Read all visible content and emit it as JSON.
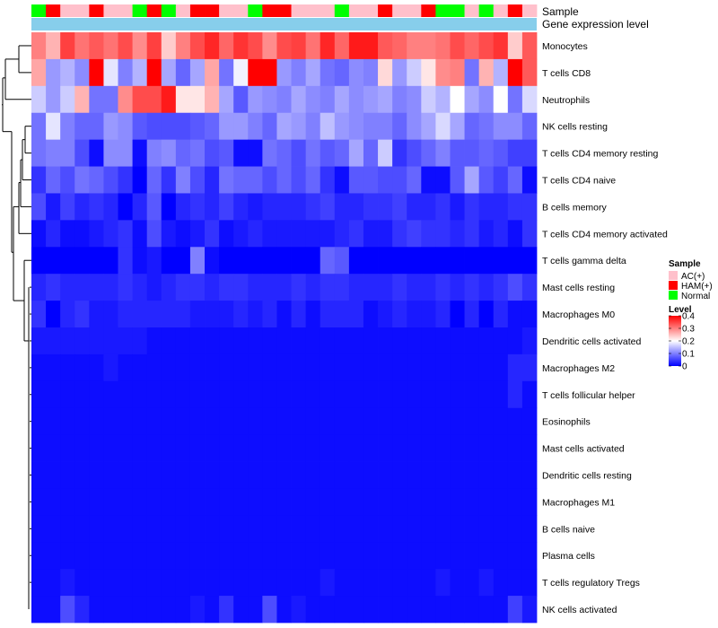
{
  "chart_data": {
    "type": "heatmap",
    "title": "",
    "annotation_labels": [
      "Sample",
      "Gene expression level"
    ],
    "rows": [
      "Monocytes",
      "T cells CD8",
      "Neutrophils",
      "NK cells resting",
      "T cells CD4 memory resting",
      "T cells CD4 naive",
      "B cells memory",
      "T cells CD4 memory activated",
      "T cells gamma delta",
      "Mast cells resting",
      "Macrophages M0",
      "Dendritic cells activated",
      "Macrophages M2",
      "T cells follicular helper",
      "Eosinophils",
      "Mast cells activated",
      "Dendritic cells resting",
      "Macrophages M1",
      "B cells naive",
      "Plasma cells",
      "T cells regulatory  Tregs",
      "NK cells activated"
    ],
    "samples": [
      "Normal",
      "HAM(+)",
      "AC(+)",
      "AC(+)",
      "HAM(+)",
      "AC(+)",
      "AC(+)",
      "Normal",
      "HAM(+)",
      "Normal",
      "AC(+)",
      "HAM(+)",
      "HAM(+)",
      "AC(+)",
      "AC(+)",
      "Normal",
      "HAM(+)",
      "HAM(+)",
      "AC(+)",
      "AC(+)",
      "AC(+)",
      "Normal",
      "AC(+)",
      "AC(+)",
      "HAM(+)",
      "AC(+)",
      "AC(+)",
      "HAM(+)",
      "Normal",
      "Normal",
      "AC(+)",
      "Normal",
      "AC(+)",
      "HAM(+)",
      "AC(+)"
    ],
    "values": [
      [
        0.3,
        0.26,
        0.35,
        0.31,
        0.33,
        0.31,
        0.34,
        0.29,
        0.35,
        0.24,
        0.3,
        0.34,
        0.37,
        0.32,
        0.36,
        0.34,
        0.29,
        0.34,
        0.35,
        0.31,
        0.37,
        0.32,
        0.38,
        0.38,
        0.33,
        0.32,
        0.3,
        0.3,
        0.31,
        0.34,
        0.32,
        0.34,
        0.36,
        0.24,
        0.33
      ],
      [
        0.27,
        0.12,
        0.14,
        0.11,
        0.4,
        0.18,
        0.1,
        0.14,
        0.4,
        0.13,
        0.08,
        0.13,
        0.27,
        0.09,
        0.19,
        0.4,
        0.4,
        0.12,
        0.1,
        0.13,
        0.09,
        0.08,
        0.11,
        0.1,
        0.23,
        0.12,
        0.16,
        0.22,
        0.29,
        0.3,
        0.09,
        0.26,
        0.14,
        0.4,
        0.33
      ],
      [
        0.16,
        0.12,
        0.16,
        0.26,
        0.09,
        0.09,
        0.29,
        0.34,
        0.34,
        0.38,
        0.22,
        0.22,
        0.26,
        0.13,
        0.07,
        0.12,
        0.11,
        0.1,
        0.13,
        0.11,
        0.1,
        0.13,
        0.11,
        0.12,
        0.13,
        0.1,
        0.11,
        0.16,
        0.14,
        0.2,
        0.13,
        0.11,
        0.2,
        0.09,
        0.17
      ],
      [
        0.09,
        0.18,
        0.1,
        0.08,
        0.08,
        0.12,
        0.11,
        0.07,
        0.06,
        0.06,
        0.06,
        0.07,
        0.08,
        0.12,
        0.12,
        0.1,
        0.08,
        0.13,
        0.12,
        0.1,
        0.15,
        0.12,
        0.11,
        0.1,
        0.1,
        0.08,
        0.11,
        0.13,
        0.17,
        0.13,
        0.08,
        0.09,
        0.11,
        0.11,
        0.08
      ],
      [
        0.09,
        0.1,
        0.1,
        0.06,
        0.01,
        0.11,
        0.11,
        0.01,
        0.1,
        0.11,
        0.08,
        0.09,
        0.06,
        0.07,
        0.01,
        0.01,
        0.09,
        0.08,
        0.06,
        0.09,
        0.07,
        0.08,
        0.13,
        0.08,
        0.16,
        0.04,
        0.06,
        0.08,
        0.1,
        0.07,
        0.07,
        0.08,
        0.07,
        0.05,
        0.05
      ],
      [
        0.04,
        0.08,
        0.06,
        0.09,
        0.08,
        0.06,
        0.04,
        0.0,
        0.08,
        0.04,
        0.1,
        0.06,
        0.03,
        0.09,
        0.08,
        0.08,
        0.06,
        0.08,
        0.06,
        0.08,
        0.04,
        0.01,
        0.07,
        0.07,
        0.06,
        0.06,
        0.08,
        0.01,
        0.01,
        0.07,
        0.13,
        0.07,
        0.05,
        0.08,
        0.01
      ],
      [
        0.06,
        0.02,
        0.05,
        0.03,
        0.04,
        0.03,
        0.0,
        0.03,
        0.07,
        0.0,
        0.03,
        0.04,
        0.03,
        0.05,
        0.03,
        0.02,
        0.03,
        0.03,
        0.03,
        0.04,
        0.05,
        0.03,
        0.03,
        0.04,
        0.04,
        0.05,
        0.03,
        0.03,
        0.04,
        0.02,
        0.04,
        0.03,
        0.03,
        0.04,
        0.04
      ],
      [
        0.01,
        0.03,
        0.01,
        0.01,
        0.02,
        0.03,
        0.04,
        0.01,
        0.06,
        0.02,
        0.01,
        0.02,
        0.04,
        0.01,
        0.02,
        0.03,
        0.02,
        0.02,
        0.02,
        0.02,
        0.02,
        0.03,
        0.04,
        0.02,
        0.02,
        0.04,
        0.05,
        0.04,
        0.04,
        0.03,
        0.04,
        0.02,
        0.03,
        0.01,
        0.04
      ],
      [
        0.0,
        0.0,
        0.0,
        0.0,
        0.0,
        0.0,
        0.04,
        0.01,
        0.02,
        0.0,
        0.0,
        0.1,
        0.01,
        0.0,
        0.0,
        0.0,
        0.0,
        0.0,
        0.0,
        0.0,
        0.08,
        0.07,
        0.0,
        0.0,
        0.0,
        0.0,
        0.0,
        0.0,
        0.0,
        0.0,
        0.0,
        0.0,
        0.0,
        0.0,
        0.0
      ],
      [
        0.03,
        0.04,
        0.03,
        0.03,
        0.03,
        0.03,
        0.04,
        0.03,
        0.02,
        0.03,
        0.04,
        0.04,
        0.03,
        0.04,
        0.04,
        0.03,
        0.03,
        0.03,
        0.04,
        0.03,
        0.04,
        0.04,
        0.03,
        0.03,
        0.03,
        0.04,
        0.03,
        0.03,
        0.04,
        0.03,
        0.04,
        0.03,
        0.04,
        0.06,
        0.04
      ],
      [
        0.04,
        0.0,
        0.03,
        0.04,
        0.02,
        0.02,
        0.03,
        0.03,
        0.03,
        0.03,
        0.03,
        0.02,
        0.02,
        0.02,
        0.03,
        0.02,
        0.03,
        0.01,
        0.03,
        0.01,
        0.03,
        0.03,
        0.03,
        0.01,
        0.02,
        0.03,
        0.02,
        0.02,
        0.03,
        0.0,
        0.03,
        0.0,
        0.03,
        0.01,
        0.01
      ],
      [
        0.02,
        0.02,
        0.02,
        0.02,
        0.02,
        0.02,
        0.02,
        0.02,
        0.01,
        0.01,
        0.01,
        0.01,
        0.01,
        0.01,
        0.01,
        0.01,
        0.01,
        0.01,
        0.01,
        0.01,
        0.01,
        0.01,
        0.01,
        0.01,
        0.01,
        0.01,
        0.01,
        0.01,
        0.01,
        0.01,
        0.01,
        0.01,
        0.01,
        0.01,
        0.02
      ],
      [
        0.01,
        0.01,
        0.01,
        0.01,
        0.01,
        0.02,
        0.01,
        0.01,
        0.01,
        0.01,
        0.01,
        0.01,
        0.01,
        0.01,
        0.01,
        0.01,
        0.01,
        0.01,
        0.01,
        0.01,
        0.01,
        0.01,
        0.01,
        0.01,
        0.01,
        0.01,
        0.01,
        0.01,
        0.01,
        0.01,
        0.01,
        0.01,
        0.01,
        0.03,
        0.03
      ],
      [
        0.01,
        0.01,
        0.01,
        0.01,
        0.01,
        0.01,
        0.01,
        0.01,
        0.01,
        0.01,
        0.01,
        0.01,
        0.01,
        0.01,
        0.01,
        0.01,
        0.01,
        0.01,
        0.01,
        0.01,
        0.01,
        0.01,
        0.01,
        0.01,
        0.01,
        0.01,
        0.01,
        0.01,
        0.01,
        0.01,
        0.01,
        0.01,
        0.01,
        0.03,
        0.01
      ],
      [
        0.01,
        0.01,
        0.01,
        0.01,
        0.01,
        0.01,
        0.01,
        0.01,
        0.01,
        0.01,
        0.01,
        0.01,
        0.01,
        0.01,
        0.01,
        0.01,
        0.01,
        0.01,
        0.01,
        0.01,
        0.01,
        0.01,
        0.01,
        0.01,
        0.01,
        0.01,
        0.01,
        0.01,
        0.01,
        0.01,
        0.01,
        0.01,
        0.01,
        0.01,
        0.01
      ],
      [
        0.01,
        0.01,
        0.01,
        0.01,
        0.01,
        0.01,
        0.01,
        0.01,
        0.01,
        0.01,
        0.01,
        0.01,
        0.01,
        0.01,
        0.01,
        0.01,
        0.01,
        0.01,
        0.01,
        0.01,
        0.01,
        0.01,
        0.01,
        0.01,
        0.01,
        0.01,
        0.01,
        0.01,
        0.01,
        0.01,
        0.01,
        0.01,
        0.01,
        0.01,
        0.01
      ],
      [
        0.01,
        0.01,
        0.01,
        0.01,
        0.01,
        0.01,
        0.01,
        0.01,
        0.01,
        0.01,
        0.01,
        0.01,
        0.01,
        0.01,
        0.01,
        0.01,
        0.01,
        0.01,
        0.01,
        0.01,
        0.01,
        0.01,
        0.01,
        0.01,
        0.01,
        0.01,
        0.01,
        0.01,
        0.01,
        0.01,
        0.01,
        0.01,
        0.01,
        0.01,
        0.01
      ],
      [
        0.01,
        0.01,
        0.01,
        0.01,
        0.01,
        0.01,
        0.01,
        0.01,
        0.01,
        0.01,
        0.01,
        0.01,
        0.01,
        0.01,
        0.01,
        0.01,
        0.01,
        0.01,
        0.01,
        0.01,
        0.01,
        0.01,
        0.01,
        0.01,
        0.01,
        0.01,
        0.01,
        0.01,
        0.01,
        0.01,
        0.01,
        0.01,
        0.01,
        0.01,
        0.01
      ],
      [
        0.01,
        0.01,
        0.01,
        0.01,
        0.01,
        0.01,
        0.01,
        0.01,
        0.01,
        0.01,
        0.01,
        0.01,
        0.01,
        0.01,
        0.01,
        0.01,
        0.01,
        0.01,
        0.01,
        0.01,
        0.01,
        0.01,
        0.01,
        0.01,
        0.01,
        0.01,
        0.01,
        0.01,
        0.01,
        0.01,
        0.01,
        0.01,
        0.01,
        0.01,
        0.01
      ],
      [
        0.01,
        0.01,
        0.01,
        0.01,
        0.01,
        0.01,
        0.01,
        0.01,
        0.01,
        0.01,
        0.01,
        0.01,
        0.01,
        0.01,
        0.01,
        0.01,
        0.01,
        0.01,
        0.01,
        0.01,
        0.01,
        0.01,
        0.01,
        0.01,
        0.01,
        0.01,
        0.01,
        0.01,
        0.01,
        0.01,
        0.01,
        0.01,
        0.01,
        0.01,
        0.01
      ],
      [
        0.01,
        0.01,
        0.02,
        0.01,
        0.01,
        0.01,
        0.01,
        0.01,
        0.01,
        0.01,
        0.01,
        0.01,
        0.01,
        0.01,
        0.01,
        0.01,
        0.01,
        0.01,
        0.01,
        0.01,
        0.02,
        0.01,
        0.01,
        0.01,
        0.01,
        0.01,
        0.01,
        0.01,
        0.02,
        0.01,
        0.01,
        0.02,
        0.01,
        0.01,
        0.01
      ],
      [
        0.01,
        0.01,
        0.06,
        0.03,
        0.01,
        0.01,
        0.01,
        0.01,
        0.01,
        0.01,
        0.01,
        0.02,
        0.01,
        0.04,
        0.01,
        0.01,
        0.06,
        0.01,
        0.02,
        0.01,
        0.01,
        0.01,
        0.01,
        0.01,
        0.01,
        0.01,
        0.01,
        0.01,
        0.01,
        0.01,
        0.01,
        0.01,
        0.01,
        0.05,
        0.02
      ]
    ],
    "color_scale": {
      "domain": [
        0,
        0.2,
        0.4
      ],
      "colors": [
        "#0000ff",
        "#ffffff",
        "#ff0000"
      ]
    },
    "annotation_colors": {
      "AC(+)": "#ffc0cb",
      "HAM(+)": "#ff0000",
      "Normal": "#00ff00",
      "expression_bar": "#87ceeb"
    },
    "legend": {
      "sample_title": "Sample",
      "sample_entries": [
        "AC(+)",
        "HAM(+)",
        "Normal"
      ],
      "level_title": "Level",
      "level_ticks": [
        "0.4",
        "0.3",
        "0.2",
        "0.1",
        "0"
      ],
      "level_tick_values": [
        0.4,
        0.3,
        0.2,
        0.1,
        0
      ],
      "position": "right"
    },
    "row_dendrogram": true
  }
}
